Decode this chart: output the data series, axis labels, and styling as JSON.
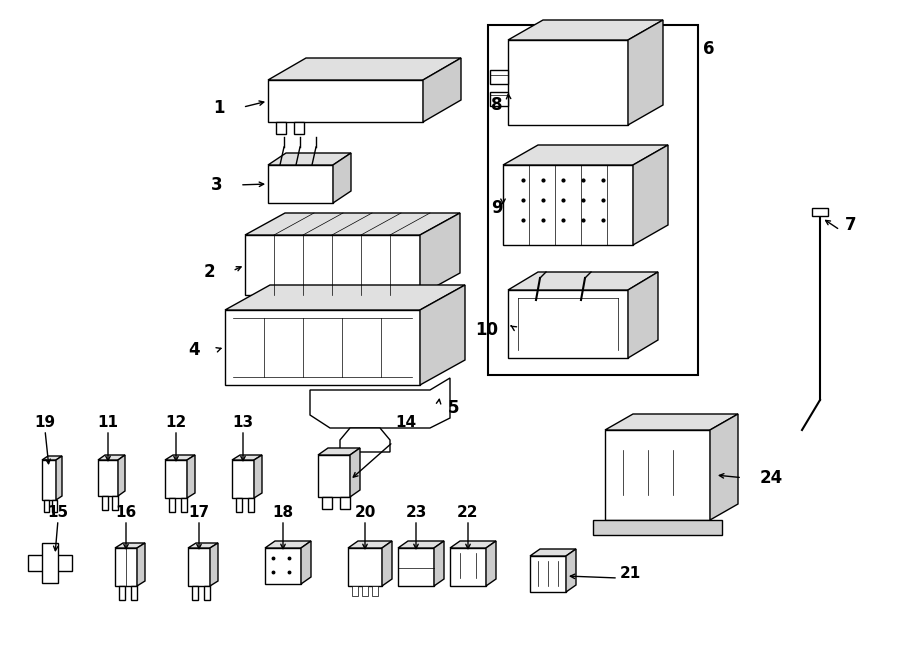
{
  "bg_color": "#ffffff",
  "figsize": [
    9.0,
    6.61
  ],
  "dpi": 100,
  "lw": 1.0,
  "lw_thin": 0.5,
  "ec": "#000000",
  "fc_white": "#ffffff",
  "fc_light": "#e8e8e8",
  "fc_mid": "#d0d0d0",
  "label_fontsize": 12,
  "label_fontsize_sm": 11
}
